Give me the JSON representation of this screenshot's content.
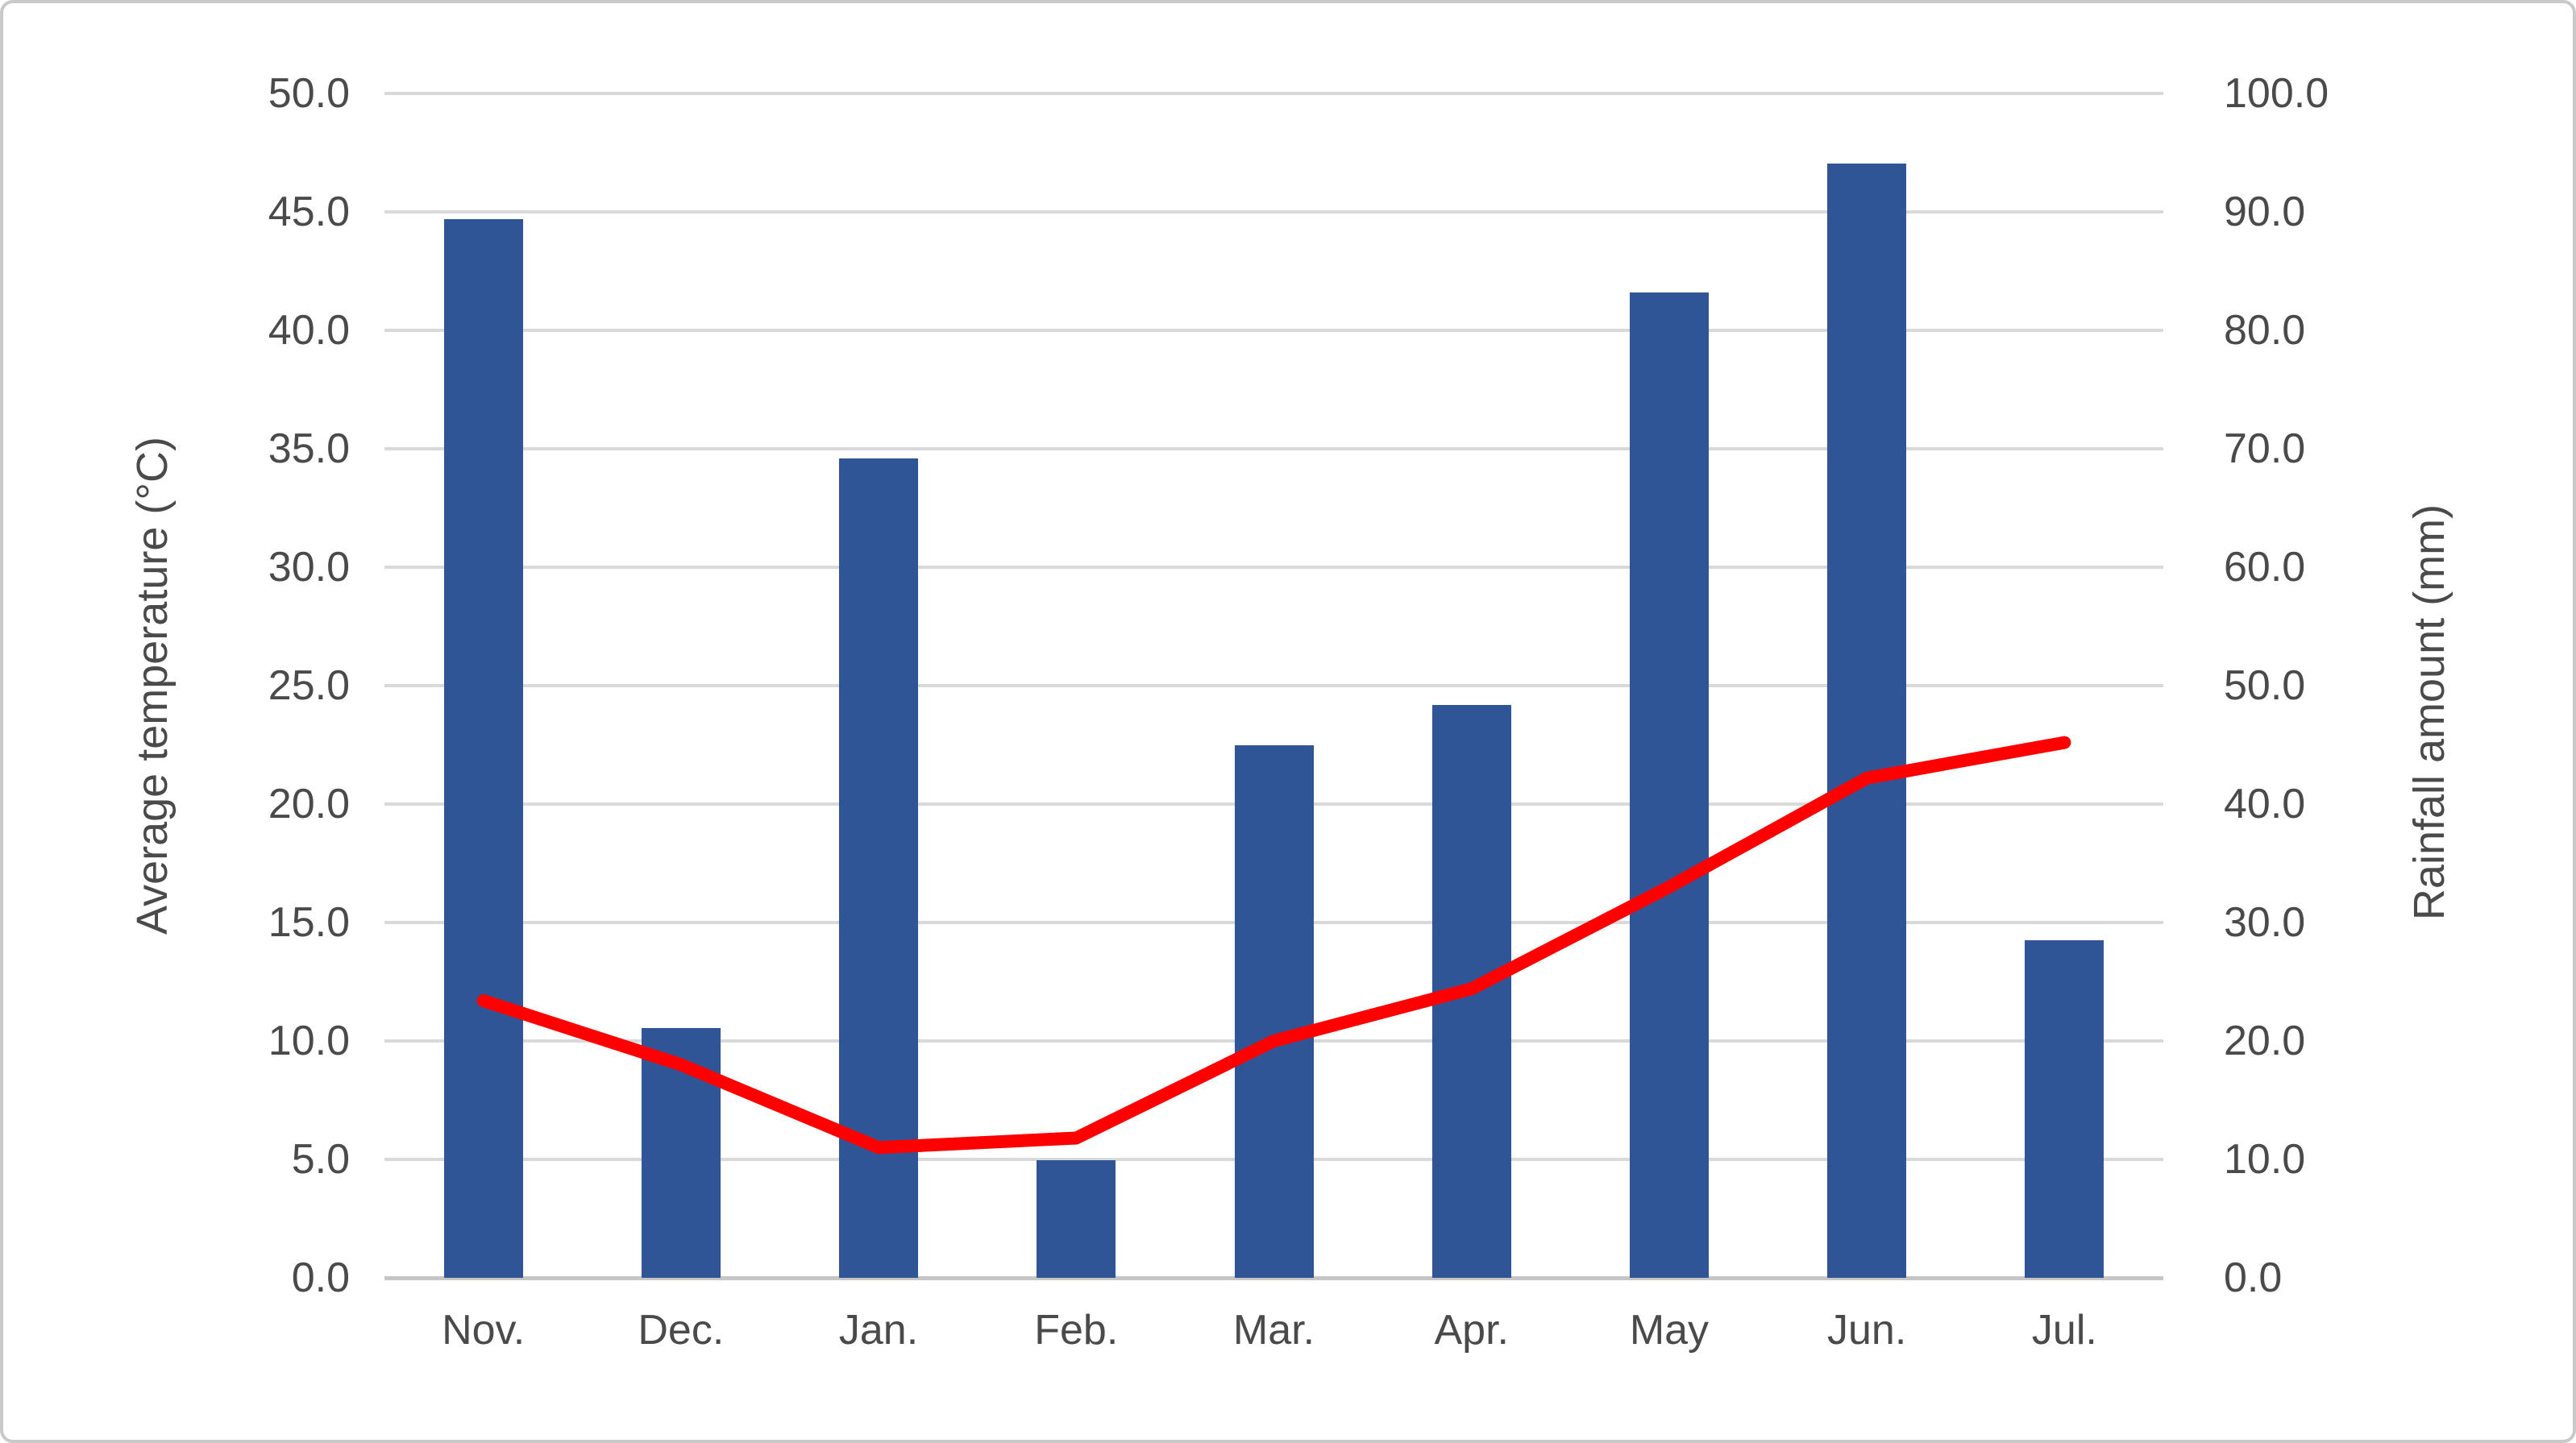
{
  "chart_data": {
    "type": "combo",
    "title": "",
    "categories": [
      "Nov.",
      "Dec.",
      "Jan.",
      "Feb.",
      "Mar.",
      "Apr.",
      "May",
      "Jun.",
      "Jul."
    ],
    "series": [
      {
        "name": "Rainfall amount (mm)",
        "type": "bar",
        "axis": "right",
        "color": "#2f5597",
        "values": [
          89.4,
          21.1,
          69.2,
          9.9,
          45.0,
          48.4,
          83.2,
          94.1,
          28.5
        ]
      },
      {
        "name": "Average temperature (°C)",
        "type": "line",
        "axis": "left",
        "color": "#ff0000",
        "values": [
          11.7,
          9.0,
          5.5,
          5.9,
          10.0,
          12.2,
          16.5,
          21.1,
          22.6
        ]
      }
    ],
    "left_axis": {
      "label": "Average temperature (°C)",
      "min": 0,
      "max": 50,
      "step": 5,
      "tick_labels": [
        "0.0",
        "5.0",
        "10.0",
        "15.0",
        "20.0",
        "25.0",
        "30.0",
        "35.0",
        "40.0",
        "45.0",
        "50.0"
      ]
    },
    "right_axis": {
      "label": "Rainfall amount (mm)",
      "min": 0,
      "max": 100,
      "step": 10,
      "tick_labels": [
        "0.0",
        "10.0",
        "20.0",
        "30.0",
        "40.0",
        "50.0",
        "60.0",
        "70.0",
        "80.0",
        "90.0",
        "100.0"
      ]
    },
    "grid": true,
    "legend": false
  },
  "colors": {
    "bar": "#2f5597",
    "line": "#ff0000",
    "grid": "#d9d9d9",
    "axis_line": "#c6c6c6",
    "text": "#4a4a4a",
    "border": "#c9c9c9"
  }
}
